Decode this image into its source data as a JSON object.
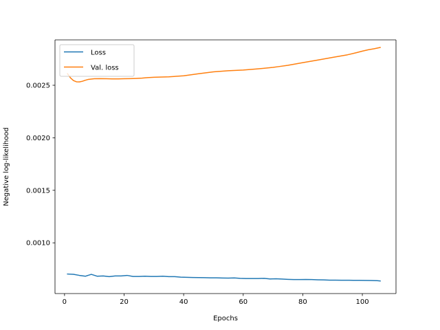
{
  "chart_data": {
    "type": "line",
    "title": "",
    "xlabel": "Epochs",
    "ylabel": "Negative log-likelihood",
    "xlim": [
      -3.2,
      111.3
    ],
    "ylim": [
      0.000517,
      0.002932
    ],
    "xticks": [
      0,
      20,
      40,
      60,
      80,
      100
    ],
    "xtick_labels": [
      "0",
      "20",
      "40",
      "60",
      "80",
      "100"
    ],
    "yticks": [
      0.001,
      0.0015,
      0.002,
      0.0025
    ],
    "ytick_labels": [
      "0.0010",
      "0.0015",
      "0.0020",
      "0.0025"
    ],
    "grid": false,
    "legend_position": "top-left",
    "series": [
      {
        "name": "Loss",
        "color": "#1f77b4",
        "x": [
          1,
          3,
          5,
          7,
          9,
          11,
          13,
          15,
          17,
          19,
          21,
          23,
          25,
          27,
          29,
          31,
          33,
          35,
          37,
          39,
          41,
          43,
          45,
          47,
          49,
          51,
          53,
          55,
          57,
          59,
          61,
          63,
          65,
          67,
          69,
          71,
          73,
          75,
          77,
          79,
          81,
          83,
          85,
          87,
          89,
          91,
          93,
          95,
          97,
          99,
          101,
          103,
          105,
          106
        ],
        "y": [
          0.000703,
          0.0007,
          0.00069,
          0.000682,
          0.0007,
          0.000682,
          0.000685,
          0.000678,
          0.000685,
          0.000685,
          0.00069,
          0.00068,
          0.00068,
          0.000682,
          0.00068,
          0.00068,
          0.000682,
          0.000678,
          0.000678,
          0.000673,
          0.000672,
          0.00067,
          0.000669,
          0.000668,
          0.000667,
          0.000667,
          0.000665,
          0.000664,
          0.000666,
          0.000662,
          0.00066,
          0.00066,
          0.00066,
          0.000662,
          0.000656,
          0.000658,
          0.000655,
          0.000652,
          0.00065,
          0.00065,
          0.000651,
          0.00065,
          0.000648,
          0.000647,
          0.000645,
          0.000645,
          0.000644,
          0.000644,
          0.000643,
          0.000643,
          0.000642,
          0.000641,
          0.00064,
          0.000637
        ]
      },
      {
        "name": "Val. loss",
        "color": "#ff7f0e",
        "x": [
          1,
          2,
          3,
          4,
          5,
          6,
          7,
          8,
          10,
          12,
          14,
          16,
          18,
          20,
          22,
          24,
          26,
          28,
          30,
          35,
          40,
          45,
          50,
          55,
          60,
          65,
          70,
          72,
          75,
          80,
          85,
          90,
          95,
          98,
          100,
          102,
          104,
          106
        ],
        "y": [
          0.00261,
          0.00257,
          0.002545,
          0.002533,
          0.002532,
          0.002538,
          0.002548,
          0.002556,
          0.002562,
          0.002563,
          0.002562,
          0.002561,
          0.002561,
          0.002562,
          0.002563,
          0.002565,
          0.002568,
          0.002573,
          0.002576,
          0.00258,
          0.00259,
          0.00261,
          0.002628,
          0.002638,
          0.002645,
          0.002656,
          0.00267,
          0.002678,
          0.00269,
          0.002715,
          0.00274,
          0.002765,
          0.00279,
          0.00281,
          0.002825,
          0.002838,
          0.002848,
          0.00286
        ]
      }
    ]
  }
}
